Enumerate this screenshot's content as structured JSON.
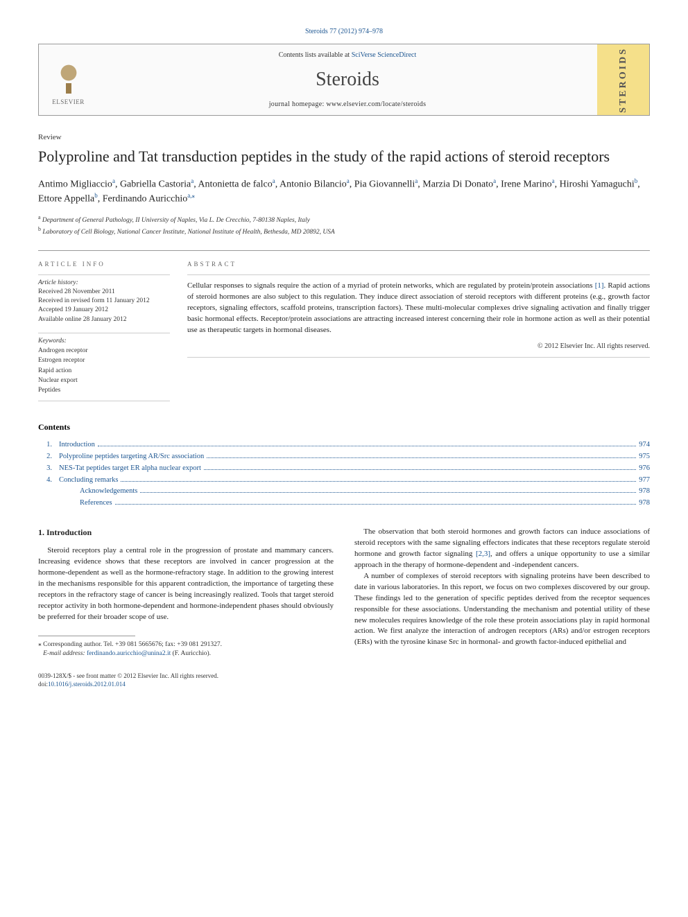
{
  "citation": "Steroids 77 (2012) 974–978",
  "header": {
    "contents_available": "Contents lists available at",
    "contents_link": "SciVerse ScienceDirect",
    "journal_name": "Steroids",
    "homepage_prefix": "journal homepage:",
    "homepage_url": "www.elsevier.com/locate/steroids",
    "elsevier_label": "ELSEVIER",
    "cover_text": "STEROIDS"
  },
  "article_type": "Review",
  "title": "Polyproline and Tat transduction peptides in the study of the rapid actions of steroid receptors",
  "authors_html": "Antimo Migliaccio|a|, Gabriella Castoria|a|, Antonietta de falco|a|, Antonio Bilancio|a|, Pia Giovannelli|a|, Marzia Di Donato|a|, Irene Marino|a|, Hiroshi Yamaguchi|b|, Ettore Appella|b|, Ferdinando Auricchio|a,*|",
  "affiliations": [
    {
      "sup": "a",
      "text": "Department of General Pathology, II University of Naples, Via L. De Crecchio, 7-80138 Naples, Italy"
    },
    {
      "sup": "b",
      "text": "Laboratory of Cell Biology, National Cancer Institute, National Institute of Health, Bethesda, MD 20892, USA"
    }
  ],
  "article_info": {
    "heading": "ARTICLE INFO",
    "history_label": "Article history:",
    "history": [
      "Received 28 November 2011",
      "Received in revised form 11 January 2012",
      "Accepted 19 January 2012",
      "Available online 28 January 2012"
    ],
    "keywords_label": "Keywords:",
    "keywords": [
      "Androgen receptor",
      "Estrogen receptor",
      "Rapid action",
      "Nuclear export",
      "Peptides"
    ]
  },
  "abstract": {
    "heading": "ABSTRACT",
    "body_pre": "Cellular responses to signals require the action of a myriad of protein networks, which are regulated by protein/protein associations ",
    "ref1": "[1]",
    "body_post": ". Rapid actions of steroid hormones are also subject to this regulation. They induce direct association of steroid receptors with different proteins (e.g., growth factor receptors, signaling effectors, scaffold proteins, transcription factors). These multi-molecular complexes drive signaling activation and finally trigger basic hormonal effects. Receptor/protein associations are attracting increased interest concerning their role in hormone action as well as their potential use as therapeutic targets in hormonal diseases.",
    "copyright": "© 2012 Elsevier Inc. All rights reserved."
  },
  "contents": {
    "heading": "Contents",
    "items": [
      {
        "num": "1.",
        "label": "Introduction",
        "page": "974",
        "indent": false
      },
      {
        "num": "2.",
        "label": "Polyproline peptides targeting AR/Src association",
        "page": "975",
        "indent": false
      },
      {
        "num": "3.",
        "label": "NES-Tat peptides target ER alpha nuclear export",
        "page": "976",
        "indent": false
      },
      {
        "num": "4.",
        "label": "Concluding remarks",
        "page": "977",
        "indent": false
      },
      {
        "num": "",
        "label": "Acknowledgements",
        "page": "978",
        "indent": true
      },
      {
        "num": "",
        "label": "References",
        "page": "978",
        "indent": true
      }
    ]
  },
  "intro": {
    "heading": "1. Introduction",
    "left_p1": "Steroid receptors play a central role in the progression of prostate and mammary cancers. Increasing evidence shows that these receptors are involved in cancer progression at the hormone-dependent as well as the hormone-refractory stage. In addition to the growing interest in the mechanisms responsible for this apparent contradiction, the importance of targeting these receptors in the refractory stage of cancer is being increasingly realized. Tools that target steroid receptor activity in both hormone-dependent and hormone-independent phases should obviously be preferred for their broader scope of use.",
    "right_p1_pre": "The observation that both steroid hormones and growth factors can induce associations of steroid receptors with the same signaling effectors indicates that these receptors regulate steroid hormone and growth factor signaling ",
    "right_ref": "[2,3]",
    "right_p1_post": ", and offers a unique opportunity to use a similar approach in the therapy of hormone-dependent and -independent cancers.",
    "right_p2": "A number of complexes of steroid receptors with signaling proteins have been described to date in various laboratories. In this report, we focus on two complexes discovered by our group. These findings led to the generation of specific peptides derived from the receptor sequences responsible for these associations. Understanding the mechanism and potential utility of these new molecules requires knowledge of the role these protein associations play in rapid hormonal action. We first analyze the interaction of androgen receptors (ARs) and/or estrogen receptors (ERs) with the tyrosine kinase Src in hormonal- and growth factor-induced epithelial and"
  },
  "footnote": {
    "star": "⁎",
    "corresponding": "Corresponding author. Tel. +39 081 5665676; fax: +39 081 291327.",
    "email_label": "E-mail address:",
    "email": "ferdinando.auricchio@unina2.it",
    "email_paren": "(F. Auricchio)."
  },
  "bottom": {
    "issn_line": "0039-128X/$ - see front matter © 2012 Elsevier Inc. All rights reserved.",
    "doi_prefix": "doi:",
    "doi": "10.1016/j.steroids.2012.01.014"
  },
  "colors": {
    "link": "#1a5490",
    "text": "#222222",
    "rule": "#999999"
  }
}
